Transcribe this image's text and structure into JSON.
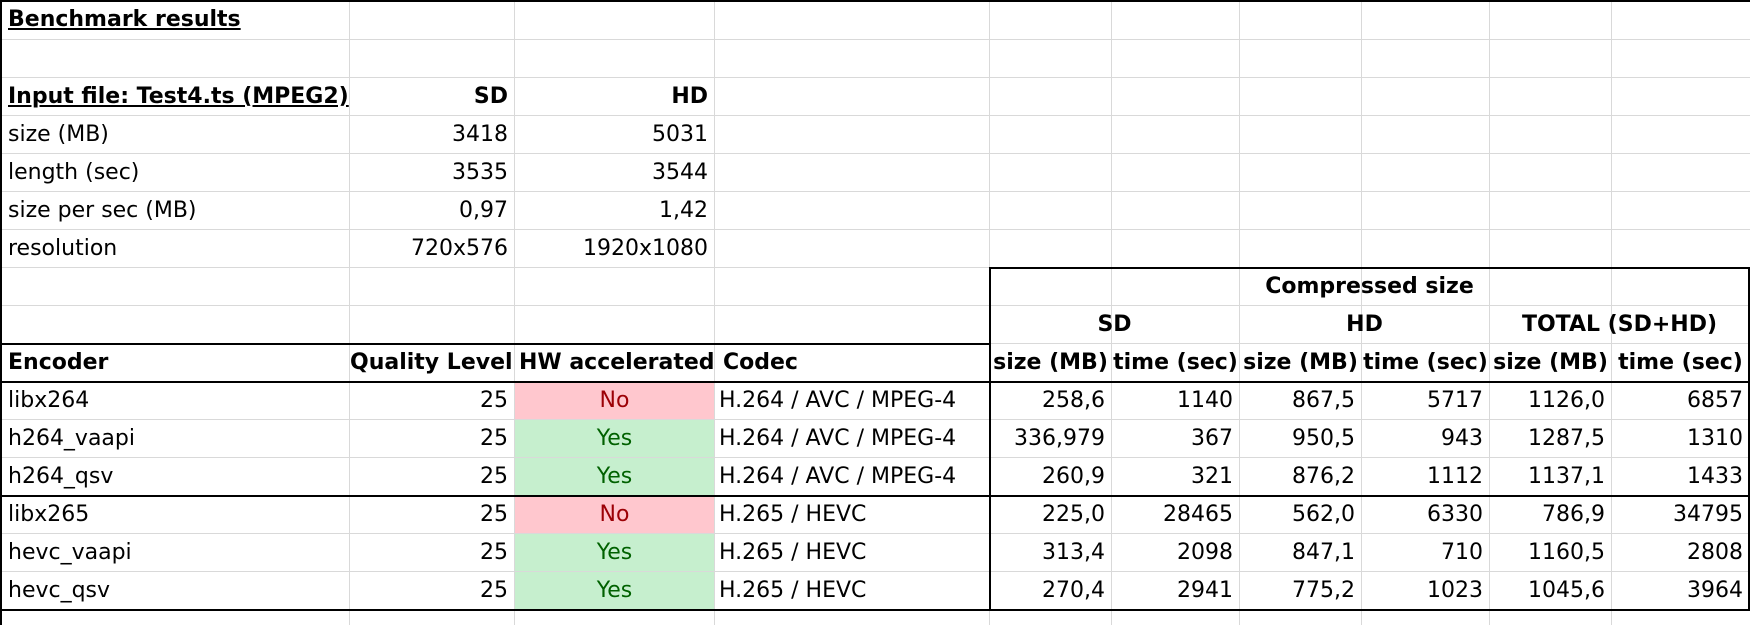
{
  "title": "Benchmark results",
  "input": {
    "heading": "Input file: Test4.ts (MPEG2)",
    "col_sd": "SD",
    "col_hd": "HD",
    "rows": [
      {
        "label": "size (MB)",
        "sd": "3418",
        "hd": "5031"
      },
      {
        "label": "length (sec)",
        "sd": "3535",
        "hd": "3544"
      },
      {
        "label": "size per sec (MB)",
        "sd": "0,97",
        "hd": "1,42"
      },
      {
        "label": "resolution",
        "sd": "720x576",
        "hd": "1920x1080"
      }
    ]
  },
  "results": {
    "group_header": "Compressed size",
    "sd": "SD",
    "hd": "HD",
    "total": "TOTAL (SD+HD)",
    "headers": [
      "Encoder",
      "Quality Level",
      "HW accelerated",
      "Codec",
      "size (MB)",
      "time (sec)",
      "size (MB)",
      "time (sec)",
      "size (MB)",
      "time (sec)"
    ],
    "rows": [
      {
        "encoder": "libx264",
        "quality": "25",
        "hw": "No",
        "codec": "H.264 / AVC / MPEG-4",
        "sd_size": "258,6",
        "sd_time": "1140",
        "hd_size": "867,5",
        "hd_time": "5717",
        "tot_size": "1126,0",
        "tot_time": "6857"
      },
      {
        "encoder": "h264_vaapi",
        "quality": "25",
        "hw": "Yes",
        "codec": "H.264 / AVC / MPEG-4",
        "sd_size": "336,979",
        "sd_time": "367",
        "hd_size": "950,5",
        "hd_time": "943",
        "tot_size": "1287,5",
        "tot_time": "1310"
      },
      {
        "encoder": "h264_qsv",
        "quality": "25",
        "hw": "Yes",
        "codec": "H.264 / AVC / MPEG-4",
        "sd_size": "260,9",
        "sd_time": "321",
        "hd_size": "876,2",
        "hd_time": "1112",
        "tot_size": "1137,1",
        "tot_time": "1433"
      },
      {
        "encoder": "libx265",
        "quality": "25",
        "hw": "No",
        "codec": "H.265 / HEVC",
        "sd_size": "225,0",
        "sd_time": "28465",
        "hd_size": "562,0",
        "hd_time": "6330",
        "tot_size": "786,9",
        "tot_time": "34795"
      },
      {
        "encoder": "hevc_vaapi",
        "quality": "25",
        "hw": "Yes",
        "codec": "H.265 / HEVC",
        "sd_size": "313,4",
        "sd_time": "2098",
        "hd_size": "847,1",
        "hd_time": "710",
        "tot_size": "1160,5",
        "tot_time": "2808"
      },
      {
        "encoder": "hevc_qsv",
        "quality": "25",
        "hw": "Yes",
        "codec": "H.265 / HEVC",
        "sd_size": "270,4",
        "sd_time": "2941",
        "hd_size": "775,2",
        "hd_time": "1023",
        "tot_size": "1045,6",
        "tot_time": "3964"
      }
    ]
  },
  "colors": {
    "no_bg": "#ffc7ce",
    "no_text": "#9c0006",
    "yes_bg": "#c6efce",
    "yes_text": "#006100",
    "gridline": "#d9d9d9"
  }
}
